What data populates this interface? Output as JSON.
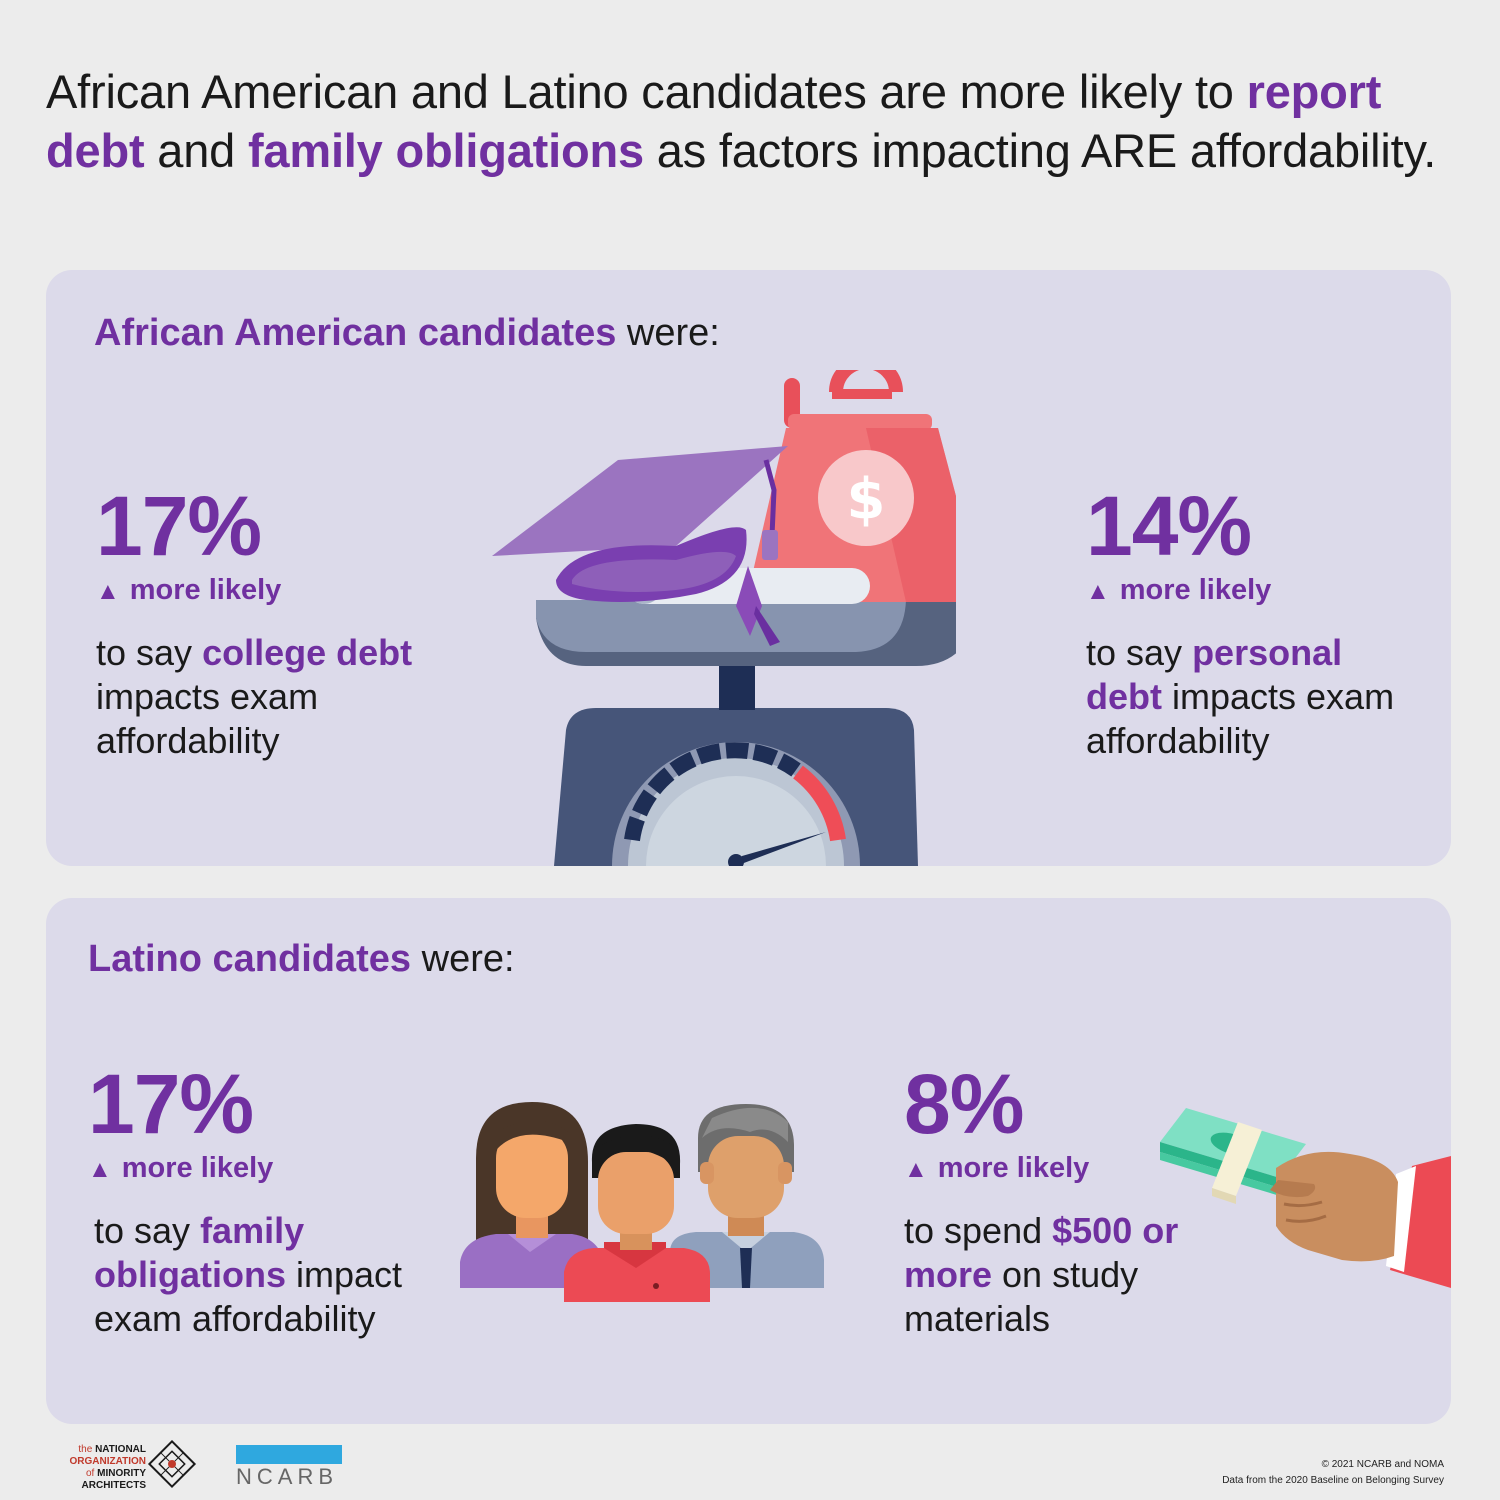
{
  "headline": {
    "part1": "African American and Latino candidates are more likely to ",
    "highlight1": "report debt",
    "part2": " and ",
    "highlight2": "family obligations",
    "part3": " as factors impacting ARE affordability."
  },
  "african_american": {
    "title_highlight": "African American candidates",
    "title_rest": " were:",
    "stats": [
      {
        "percent": "17%",
        "arrow": "▲",
        "more_likely": "more likely",
        "desc_prefix": "to say ",
        "desc_highlight": "college debt",
        "desc_suffix": " impacts exam affordability"
      },
      {
        "percent": "14%",
        "arrow": "▲",
        "more_likely": "more likely",
        "desc_prefix": "to say ",
        "desc_highlight": "personal debt",
        "desc_suffix": " impacts exam affordability"
      }
    ],
    "illustration": "debt-scale-icon",
    "dollar_sign": "$"
  },
  "latino": {
    "title_highlight": "Latino candidates",
    "title_rest": " were:",
    "stats": [
      {
        "percent": "17%",
        "arrow": "▲",
        "more_likely": "more likely",
        "desc_prefix": "to say ",
        "desc_highlight": "family obligations",
        "desc_suffix": " impact exam affordability"
      },
      {
        "percent": "8%",
        "arrow": "▲",
        "more_likely": "more likely",
        "desc_prefix": "to spend ",
        "desc_highlight": "$500 or more",
        "desc_suffix": " on study materials"
      }
    ],
    "illustrations": [
      "family-icon",
      "money-hand-icon"
    ]
  },
  "footer": {
    "noma_logo_text": [
      "the NATIONAL",
      "ORGANIZATION",
      "of MINORITY",
      "ARCHITECTS"
    ],
    "ncarb_logo_text": "NCARB",
    "copyright": "© 2021 NCARB and NOMA",
    "source": "Data from the 2020 Baseline on Belonging Survey"
  },
  "colors": {
    "accent_purple": "#7030a0",
    "panel_bg": "#dcdaea",
    "page_bg": "#ececec",
    "ncarb_blue": "#2fa8df",
    "weight_red": "#f07478"
  }
}
